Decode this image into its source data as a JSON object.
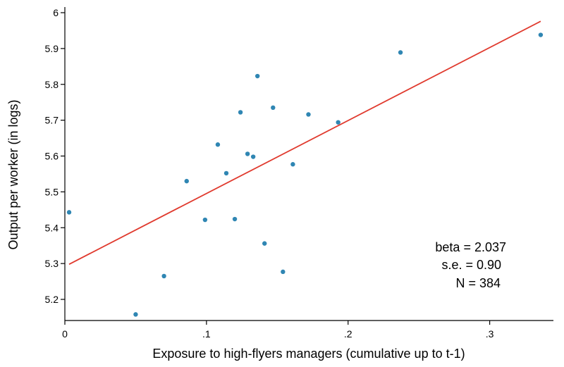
{
  "chart_data": {
    "type": "scatter",
    "xlabel": "Exposure to high-flyers managers (cumulative up to t-1)",
    "ylabel": "Output per worker (in logs)",
    "xlim": [
      0,
      0.345
    ],
    "ylim": [
      5.16,
      6.0
    ],
    "x_ticks": [
      0,
      0.1,
      0.2,
      0.3
    ],
    "x_tick_labels": [
      "0",
      ".1",
      ".2",
      ".3"
    ],
    "y_ticks": [
      5.2,
      5.3,
      5.4,
      5.5,
      5.6,
      5.7,
      5.8,
      5.9,
      6.0
    ],
    "y_tick_labels": [
      "5.2",
      "5.3",
      "5.4",
      "5.5",
      "5.6",
      "5.7",
      "5.8",
      "5.9",
      "6"
    ],
    "grid": false,
    "legend": "none",
    "points": [
      {
        "x": 0.003,
        "y": 5.443
      },
      {
        "x": 0.05,
        "y": 5.158
      },
      {
        "x": 0.07,
        "y": 5.265
      },
      {
        "x": 0.086,
        "y": 5.53
      },
      {
        "x": 0.099,
        "y": 5.422
      },
      {
        "x": 0.108,
        "y": 5.632
      },
      {
        "x": 0.114,
        "y": 5.552
      },
      {
        "x": 0.12,
        "y": 5.424
      },
      {
        "x": 0.124,
        "y": 5.722
      },
      {
        "x": 0.129,
        "y": 5.606
      },
      {
        "x": 0.133,
        "y": 5.598
      },
      {
        "x": 0.136,
        "y": 5.823
      },
      {
        "x": 0.141,
        "y": 5.356
      },
      {
        "x": 0.147,
        "y": 5.735
      },
      {
        "x": 0.154,
        "y": 5.277
      },
      {
        "x": 0.161,
        "y": 5.577
      },
      {
        "x": 0.172,
        "y": 5.716
      },
      {
        "x": 0.193,
        "y": 5.694
      },
      {
        "x": 0.237,
        "y": 5.889
      },
      {
        "x": 0.336,
        "y": 5.938
      }
    ],
    "fit_line": {
      "x": [
        0.003,
        0.336
      ],
      "y": [
        5.298,
        5.976
      ]
    },
    "annotations": [
      "beta = 2.037",
      "s.e. = 0.90",
      "N = 384"
    ],
    "colors": {
      "points": "#2f86b3",
      "fit": "#e03a2e",
      "axis": "#000000"
    }
  }
}
